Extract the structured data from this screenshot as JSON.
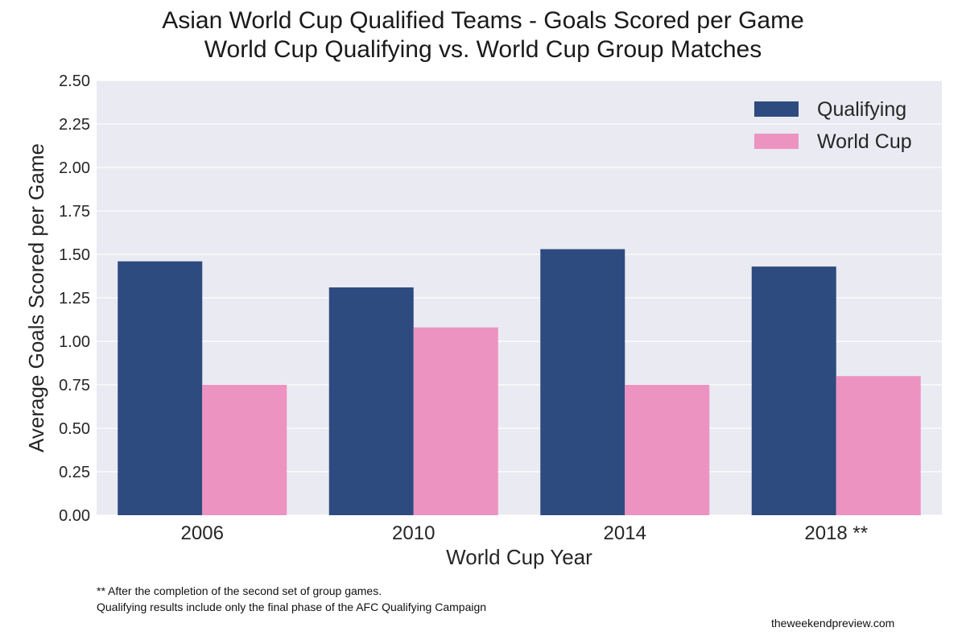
{
  "chart_data": {
    "type": "bar",
    "title": "Asian World Cup Qualified Teams - Goals Scored per Game",
    "subtitle": "World Cup Qualifying vs. World Cup Group Matches",
    "xlabel": "World Cup Year",
    "ylabel": "Average Goals Scored per Game",
    "categories": [
      "2006",
      "2010",
      "2014",
      "2018 **"
    ],
    "series": [
      {
        "name": "Qualifying",
        "color": "#2d4b7f",
        "values": [
          1.46,
          1.31,
          1.53,
          1.43
        ]
      },
      {
        "name": "World Cup",
        "color": "#ed93c1",
        "values": [
          0.75,
          1.08,
          0.75,
          0.8
        ]
      }
    ],
    "ylim": [
      0,
      2.5
    ],
    "yticks": [
      "0.00",
      "0.25",
      "0.50",
      "0.75",
      "1.00",
      "1.25",
      "1.50",
      "1.75",
      "2.00",
      "2.25",
      "2.50"
    ],
    "grid": true,
    "legend_position": "top-right",
    "background_color": "#eaeaf2"
  },
  "footnotes": {
    "line1": "** After the completion of the second set of group games.",
    "line2": "Qualifying results include only the final phase of the AFC Qualifying Campaign"
  },
  "source": "theweekendpreview.com"
}
